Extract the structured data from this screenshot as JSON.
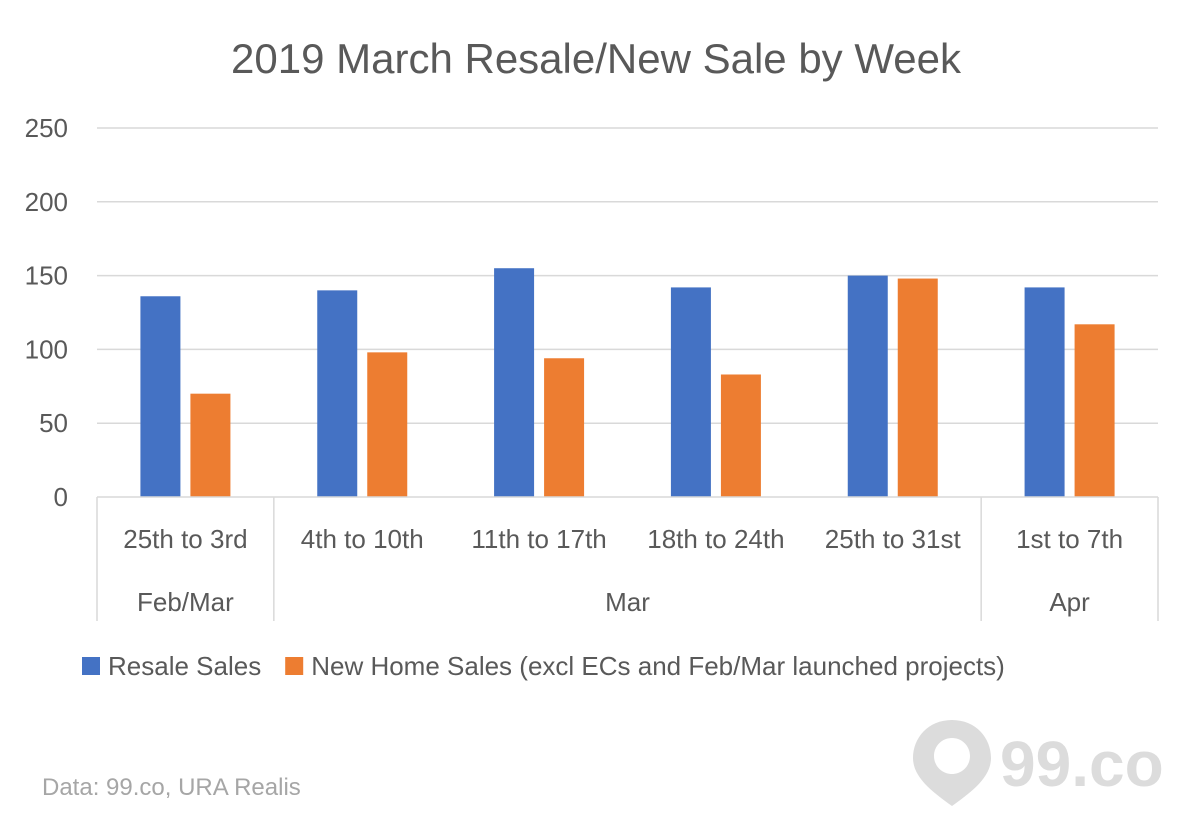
{
  "chart_data": {
    "type": "bar",
    "title": "2019 March Resale/New Sale by Week",
    "categories": [
      "25th to 3rd",
      "4th to 10th",
      "11th to 17th",
      "18th to 24th",
      "25th to 31st",
      "1st to 7th"
    ],
    "category_groups": [
      {
        "label": "Feb/Mar",
        "count": 1
      },
      {
        "label": "Mar",
        "count": 4
      },
      {
        "label": "Apr",
        "count": 1
      }
    ],
    "series": [
      {
        "name": "Resale Sales",
        "color": "#4472c4",
        "values": [
          136,
          140,
          155,
          142,
          150,
          142
        ]
      },
      {
        "name": "New Home Sales (excl ECs and Feb/Mar launched projects)",
        "color": "#ed7d31",
        "values": [
          70,
          98,
          94,
          83,
          148,
          117
        ]
      }
    ],
    "ylim": [
      0,
      250
    ],
    "yticks": [
      0,
      50,
      100,
      150,
      200,
      250
    ],
    "grid": true,
    "legend": "bottom"
  },
  "source_note": "Data: 99.co, URA Realis",
  "logo_text": "99.co"
}
